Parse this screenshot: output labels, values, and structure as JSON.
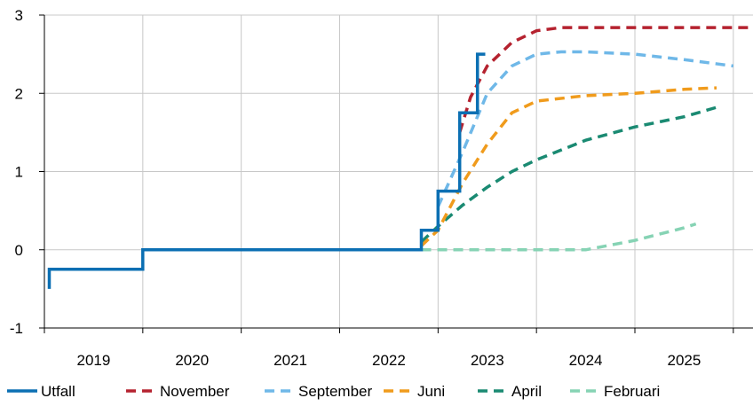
{
  "chart_data": {
    "type": "line",
    "ylim": [
      -1,
      3
    ],
    "xlim": [
      2018.5,
      2025.7
    ],
    "yticks": [
      -1,
      0,
      1,
      2,
      3
    ],
    "ytick_labels": [
      "-1",
      "0",
      "1",
      "2",
      "3"
    ],
    "xtick_labels": [
      "2019",
      "2020",
      "2021",
      "2022",
      "2023",
      "2024",
      "2025"
    ],
    "xtick_centers": [
      2019.0,
      2020.0,
      2021.0,
      2022.0,
      2023.0,
      2024.0,
      2025.0
    ],
    "x_gridlines": [
      2019.5,
      2020.5,
      2021.5,
      2022.5,
      2023.5,
      2024.5,
      2025.5
    ],
    "grid": true,
    "legend_position": "bottom",
    "series": [
      {
        "name": "Utfall",
        "color": "#0b6fb3",
        "style": "solid",
        "step": true,
        "points": [
          [
            2018.55,
            -0.5
          ],
          [
            2018.55,
            -0.25
          ],
          [
            2019.5,
            -0.25
          ],
          [
            2019.5,
            0.0
          ],
          [
            2022.33,
            0.0
          ],
          [
            2022.33,
            0.25
          ],
          [
            2022.5,
            0.25
          ],
          [
            2022.5,
            0.75
          ],
          [
            2022.72,
            0.75
          ],
          [
            2022.72,
            1.75
          ],
          [
            2022.9,
            1.75
          ],
          [
            2022.9,
            2.5
          ],
          [
            2022.98,
            2.5
          ]
        ]
      },
      {
        "name": "November",
        "color": "#b5222f",
        "style": "dashed",
        "step": false,
        "points": [
          [
            2022.72,
            1.5
          ],
          [
            2022.83,
            1.95
          ],
          [
            2023.0,
            2.35
          ],
          [
            2023.25,
            2.65
          ],
          [
            2023.5,
            2.8
          ],
          [
            2023.75,
            2.84
          ],
          [
            2024.5,
            2.84
          ],
          [
            2025.7,
            2.84
          ]
        ]
      },
      {
        "name": "September",
        "color": "#6fb8e8",
        "style": "dashed",
        "step": false,
        "points": [
          [
            2022.5,
            0.55
          ],
          [
            2022.75,
            1.25
          ],
          [
            2023.0,
            2.0
          ],
          [
            2023.25,
            2.35
          ],
          [
            2023.5,
            2.5
          ],
          [
            2023.75,
            2.53
          ],
          [
            2024.0,
            2.53
          ],
          [
            2024.5,
            2.5
          ],
          [
            2025.0,
            2.43
          ],
          [
            2025.5,
            2.35
          ]
        ]
      },
      {
        "name": "Juni",
        "color": "#f09b1c",
        "style": "dashed",
        "step": false,
        "points": [
          [
            2022.33,
            0.05
          ],
          [
            2022.5,
            0.25
          ],
          [
            2022.75,
            0.85
          ],
          [
            2023.0,
            1.35
          ],
          [
            2023.25,
            1.75
          ],
          [
            2023.5,
            1.9
          ],
          [
            2024.0,
            1.97
          ],
          [
            2024.5,
            2.0
          ],
          [
            2025.0,
            2.05
          ],
          [
            2025.33,
            2.07
          ]
        ]
      },
      {
        "name": "April",
        "color": "#1a8a72",
        "style": "dashed",
        "step": false,
        "points": [
          [
            2022.33,
            0.1
          ],
          [
            2022.5,
            0.3
          ],
          [
            2022.75,
            0.57
          ],
          [
            2023.0,
            0.8
          ],
          [
            2023.25,
            1.0
          ],
          [
            2023.5,
            1.15
          ],
          [
            2024.0,
            1.4
          ],
          [
            2024.5,
            1.57
          ],
          [
            2025.0,
            1.7
          ],
          [
            2025.33,
            1.82
          ]
        ]
      },
      {
        "name": "Februari",
        "color": "#86d3b4",
        "style": "dashed",
        "step": false,
        "points": [
          [
            2022.33,
            0.0
          ],
          [
            2023.5,
            0.0
          ],
          [
            2024.0,
            0.0
          ],
          [
            2024.5,
            0.12
          ],
          [
            2024.75,
            0.2
          ],
          [
            2025.0,
            0.28
          ],
          [
            2025.12,
            0.33
          ]
        ]
      }
    ]
  }
}
